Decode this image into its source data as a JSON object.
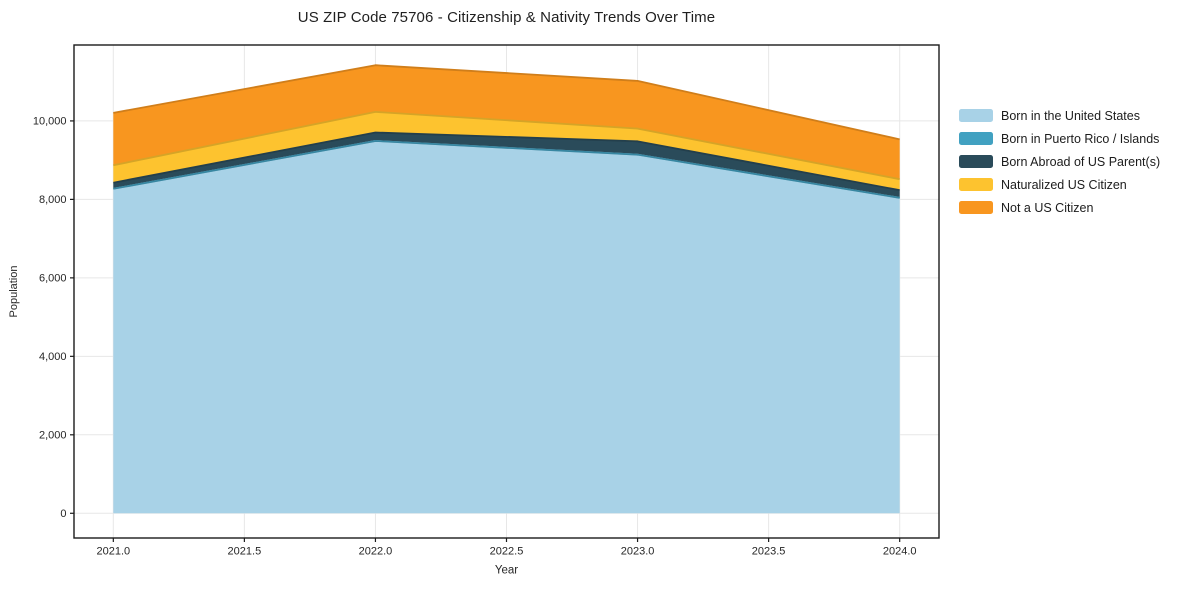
{
  "figure": {
    "title": "US ZIP Code 75706 - Citizenship & Nativity Trends Over Time"
  },
  "chart_data": {
    "type": "area",
    "stacked": true,
    "title": "US ZIP Code 75706 - Citizenship & Nativity Trends Over Time",
    "xlabel": "Year",
    "ylabel": "Population",
    "x": [
      2021,
      2022,
      2023,
      2024
    ],
    "series": [
      {
        "name": "Born in the United States",
        "color": "#A8D2E7",
        "values": [
          8270,
          9490,
          9140,
          8040
        ]
      },
      {
        "name": "Born in Puerto Rico / Islands",
        "color": "#41A1C1",
        "values": [
          0,
          0,
          0,
          0
        ]
      },
      {
        "name": "Born Abroad of US Parent(s)",
        "color": "#2A4B5A",
        "values": [
          155,
          215,
          340,
          195
        ]
      },
      {
        "name": "Naturalized US Citizen",
        "color": "#FDC32F",
        "values": [
          445,
          525,
          325,
          280
        ]
      },
      {
        "name": "Not a US Citizen",
        "color": "#F8961F",
        "values": [
          1335,
          1190,
          1215,
          1015
        ]
      }
    ],
    "stack_totals": [
      10205,
      11420,
      11020,
      9530
    ],
    "xticks": [
      2021.0,
      2021.5,
      2022.0,
      2022.5,
      2023.0,
      2023.5,
      2024.0
    ],
    "xtick_labels": [
      "2021.0",
      "2021.5",
      "2022.0",
      "2022.5",
      "2023.0",
      "2023.5",
      "2024.0"
    ],
    "yticks": [
      0,
      2000,
      4000,
      6000,
      8000,
      10000
    ],
    "ytick_labels": [
      "0",
      "2,000",
      "4,000",
      "6,000",
      "8,000",
      "10,000"
    ],
    "xlim": [
      2020.85,
      2024.15
    ],
    "ylim": [
      -630,
      11935
    ],
    "grid": true,
    "grid_color": "#e7e7e7",
    "axis_color": "#1b1b1b",
    "text_color": "#262626",
    "legend_position": "right-outside"
  }
}
